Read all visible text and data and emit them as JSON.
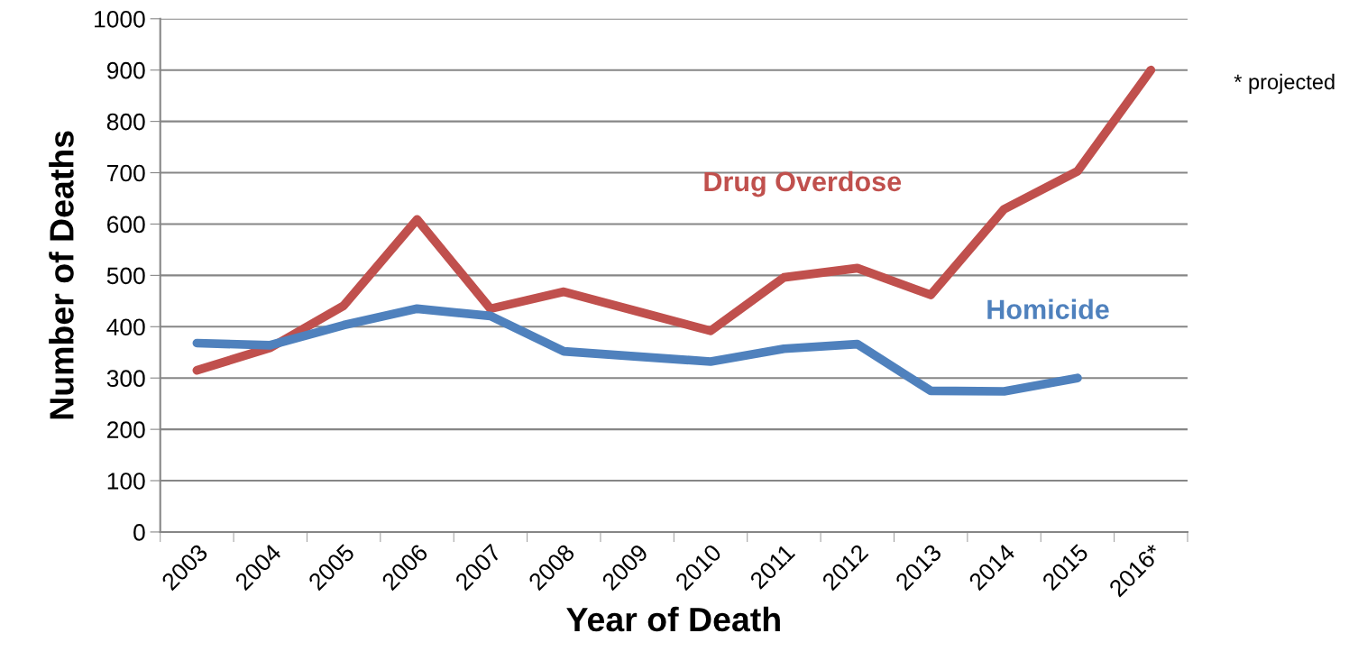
{
  "chart_data": {
    "type": "line",
    "xlabel": "Year of Death",
    "ylabel": "Number of Deaths",
    "categories": [
      "2003",
      "2004",
      "2005",
      "2006",
      "2007",
      "2008",
      "2009",
      "2010",
      "2011",
      "2012",
      "2013",
      "2014",
      "2015",
      "2016*"
    ],
    "series": [
      {
        "name": "Drug Overdose",
        "color": "#c0504d",
        "values": [
          315,
          359,
          441,
          609,
          435,
          468,
          430,
          392,
          496,
          514,
          462,
          629,
          703,
          900
        ]
      },
      {
        "name": "Homicide",
        "color": "#4f81bd",
        "values": [
          368,
          364,
          403,
          435,
          421,
          352,
          342,
          332,
          357,
          366,
          275,
          274,
          300,
          null
        ]
      }
    ],
    "ylim": [
      0,
      1000
    ],
    "yticks": [
      0,
      100,
      200,
      300,
      400,
      500,
      600,
      700,
      800,
      900,
      1000
    ],
    "grid": "y",
    "legend": false,
    "marker": "none",
    "line_style": "solid",
    "annotations": [
      "* projected"
    ]
  }
}
